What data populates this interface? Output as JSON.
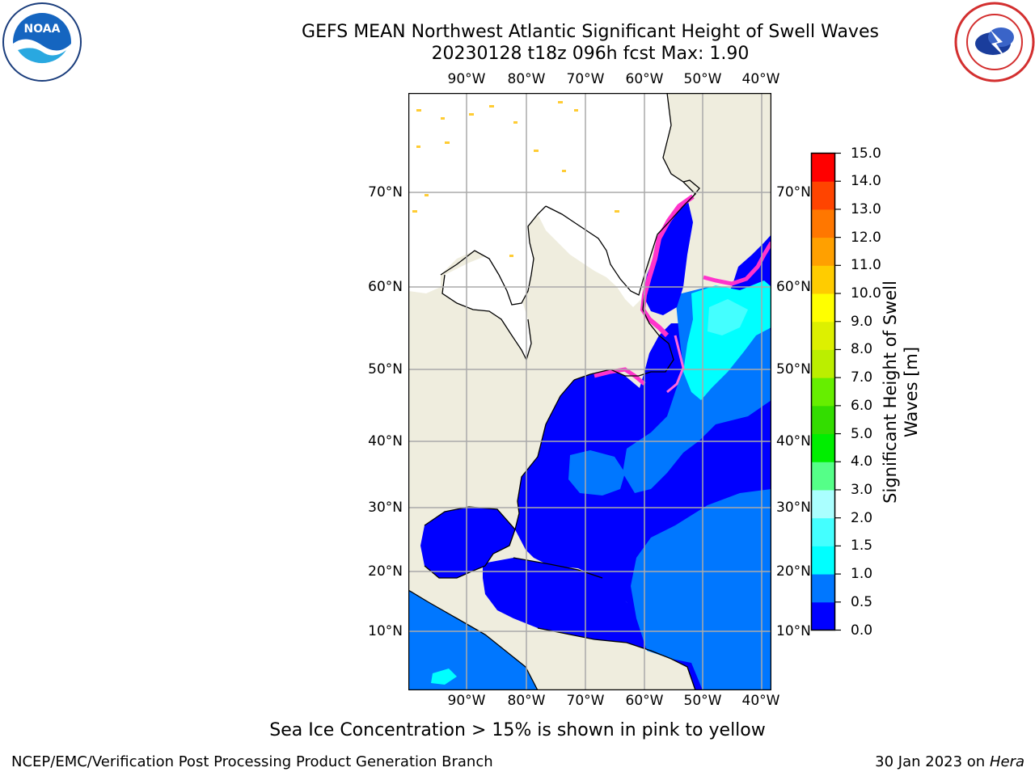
{
  "title": {
    "line1": "GEFS MEAN Northwest Atlantic Significant Height of Swell Waves",
    "line2": "20230128 t18z 096h fcst   Max: 1.90"
  },
  "map": {
    "longitude_labels": [
      "90°W",
      "80°W",
      "70°W",
      "60°W",
      "50°W",
      "40°W"
    ],
    "latitude_labels": [
      "70°N",
      "60°N",
      "50°N",
      "40°N",
      "30°N",
      "20°N",
      "10°N"
    ],
    "land_color": "#efedde",
    "ocean_base_color": "#0000ff"
  },
  "colorbar": {
    "label": "Significant Height of Swell Waves [m]",
    "ticks": [
      "0.0",
      "0.5",
      "1.0",
      "1.5",
      "2.0",
      "3.0",
      "4.0",
      "5.0",
      "6.0",
      "7.0",
      "8.0",
      "9.0",
      "10.0",
      "11.0",
      "12.0",
      "13.0",
      "14.0",
      "15.0"
    ],
    "colors": [
      "#0000ff",
      "#0077ff",
      "#00ffff",
      "#44ffff",
      "#aaffff",
      "#55ff88",
      "#00ee00",
      "#33dd00",
      "#66ee00",
      "#bbee00",
      "#ddf000",
      "#ffff00",
      "#ffcc00",
      "#ffa000",
      "#ff7700",
      "#ff4400",
      "#ff0000"
    ]
  },
  "logos": {
    "left": "noaa-logo",
    "left_text": "NOAA",
    "right": "nws-logo"
  },
  "footnote": "Sea Ice Concentration > 15% is shown in pink to yellow",
  "credits": {
    "left": "NCEP/EMC/Verification Post Processing Product Generation Branch",
    "right_date": "30 Jan 2023 on",
    "right_host": "Hera"
  }
}
